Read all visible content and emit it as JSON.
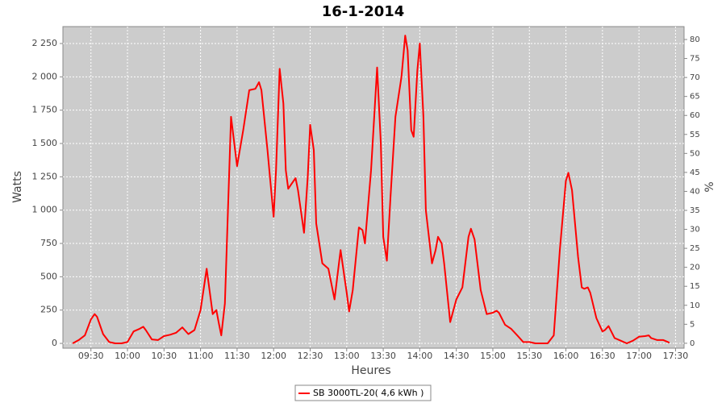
{
  "chart_data": {
    "type": "line",
    "title": "16-1-2014",
    "x_label": "Heures",
    "y_label": "Watts",
    "y2_label": "%",
    "x": [
      "09:15",
      "09:20",
      "09:25",
      "09:30",
      "09:33",
      "09:35",
      "09:40",
      "09:45",
      "09:50",
      "09:55",
      "10:00",
      "10:05",
      "10:10",
      "10:13",
      "10:15",
      "10:20",
      "10:25",
      "10:30",
      "10:35",
      "10:40",
      "10:45",
      "10:50",
      "10:55",
      "11:00",
      "11:05",
      "11:10",
      "11:13",
      "11:15",
      "11:17",
      "11:20",
      "11:25",
      "11:30",
      "11:35",
      "11:40",
      "11:45",
      "11:48",
      "11:50",
      "11:55",
      "12:00",
      "12:02",
      "12:05",
      "12:08",
      "12:10",
      "12:12",
      "12:15",
      "12:18",
      "12:20",
      "12:25",
      "12:28",
      "12:30",
      "12:33",
      "12:35",
      "12:40",
      "12:45",
      "12:50",
      "12:55",
      "13:00",
      "13:02",
      "13:05",
      "13:10",
      "13:13",
      "13:15",
      "13:20",
      "13:25",
      "13:28",
      "13:30",
      "13:33",
      "13:36",
      "13:40",
      "13:45",
      "13:48",
      "13:50",
      "13:53",
      "13:55",
      "13:58",
      "14:00",
      "14:03",
      "14:05",
      "14:10",
      "14:13",
      "14:15",
      "14:18",
      "14:20",
      "14:25",
      "14:30",
      "14:35",
      "14:40",
      "14:42",
      "14:45",
      "14:50",
      "14:55",
      "15:00",
      "15:03",
      "15:05",
      "15:10",
      "15:15",
      "15:20",
      "15:25",
      "15:30",
      "15:35",
      "15:40",
      "15:45",
      "15:50",
      "15:55",
      "16:00",
      "16:02",
      "16:05",
      "16:10",
      "16:13",
      "16:15",
      "16:18",
      "16:20",
      "16:25",
      "16:30",
      "16:32",
      "16:35",
      "16:40",
      "16:45",
      "16:50",
      "16:55",
      "17:00",
      "17:05",
      "17:08",
      "17:10",
      "17:15",
      "17:20",
      "17:25"
    ],
    "series": [
      {
        "name": "SB 3000TL-20( 4,6 kWh )",
        "color": "#ff0000",
        "values": [
          0,
          25,
          60,
          180,
          220,
          200,
          70,
          10,
          0,
          0,
          10,
          90,
          110,
          125,
          100,
          30,
          25,
          55,
          65,
          80,
          120,
          70,
          100,
          250,
          560,
          220,
          250,
          150,
          60,
          300,
          1700,
          1330,
          1600,
          1900,
          1910,
          1960,
          1900,
          1450,
          950,
          1300,
          2060,
          1800,
          1300,
          1160,
          1200,
          1240,
          1150,
          830,
          1250,
          1640,
          1450,
          900,
          600,
          560,
          330,
          700,
          380,
          240,
          400,
          870,
          850,
          750,
          1300,
          2070,
          1500,
          800,
          620,
          1100,
          1700,
          2000,
          2310,
          2200,
          1600,
          1550,
          2050,
          2250,
          1700,
          1000,
          600,
          700,
          800,
          750,
          600,
          160,
          330,
          420,
          800,
          860,
          780,
          400,
          220,
          230,
          245,
          230,
          140,
          110,
          60,
          10,
          10,
          0,
          0,
          0,
          60,
          700,
          1220,
          1280,
          1150,
          650,
          420,
          410,
          420,
          380,
          190,
          90,
          100,
          130,
          40,
          20,
          0,
          20,
          50,
          55,
          60,
          40,
          25,
          25,
          5
        ]
      }
    ],
    "xlim": [
      "09:07",
      "17:37"
    ],
    "xticks": [
      "09:30",
      "10:00",
      "10:30",
      "11:00",
      "11:30",
      "12:00",
      "12:30",
      "13:00",
      "13:30",
      "14:00",
      "14:30",
      "15:00",
      "15:30",
      "16:00",
      "16:30",
      "17:00",
      "17:30"
    ],
    "ylim": [
      -36,
      2377
    ],
    "yticks": [
      0,
      250,
      500,
      750,
      {
        "value": 1000,
        "label": "1 000"
      },
      {
        "value": 1250,
        "label": "1 250"
      },
      {
        "value": 1500,
        "label": "1 500"
      },
      {
        "value": 1750,
        "label": "1 750"
      },
      {
        "value": 2000,
        "label": "2 000"
      },
      {
        "value": 2250,
        "label": "2 250"
      }
    ],
    "y2lim": [
      -1.3,
      83.4
    ],
    "y2ticks": [
      0,
      5,
      10,
      15,
      20,
      25,
      30,
      35,
      40,
      45,
      50,
      55,
      60,
      65,
      70,
      75,
      80
    ],
    "grid": true
  }
}
